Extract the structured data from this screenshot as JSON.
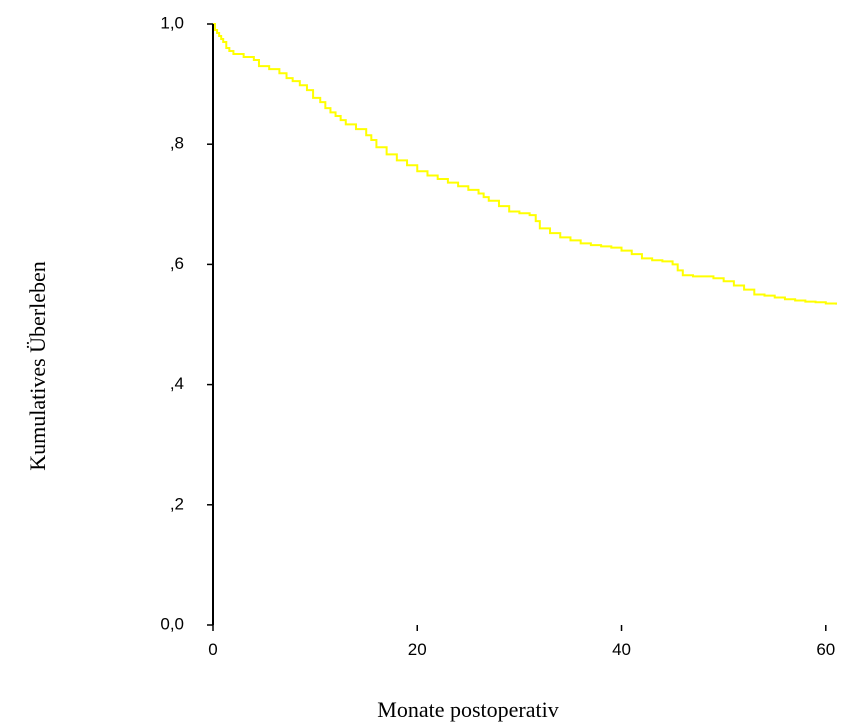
{
  "chart_data": {
    "type": "line",
    "subtype": "kaplan-meier-step",
    "title": "",
    "xlabel": "Monate postoperativ",
    "ylabel": "Kumulatives Überleben",
    "xlim": [
      0,
      61
    ],
    "ylim": [
      0,
      1
    ],
    "x_ticks": [
      {
        "value": 0,
        "label": "0"
      },
      {
        "value": 20,
        "label": "20"
      },
      {
        "value": 40,
        "label": "40"
      },
      {
        "value": 60,
        "label": "60"
      }
    ],
    "y_ticks": [
      {
        "value": 0,
        "label": "0,0"
      },
      {
        "value": 0.2,
        "label": ",2"
      },
      {
        "value": 0.4,
        "label": ",4"
      },
      {
        "value": 0.6,
        "label": ",6"
      },
      {
        "value": 0.8,
        "label": ",8"
      },
      {
        "value": 1.0,
        "label": "1,0"
      }
    ],
    "grid": false,
    "series": [
      {
        "color": "#ffff00",
        "x": [
          0,
          0.2,
          0.4,
          0.6,
          0.8,
          1.0,
          1.3,
          1.6,
          2,
          3,
          4,
          4.5,
          5.5,
          6.5,
          7.2,
          7.8,
          8.5,
          9.2,
          9.8,
          10.5,
          11,
          11.5,
          12,
          12.5,
          13,
          14,
          15,
          15.5,
          16,
          17,
          18,
          19,
          20,
          21,
          22,
          23,
          24,
          25,
          26,
          26.5,
          27,
          28,
          29,
          30,
          31,
          31.6,
          32,
          33,
          34,
          35,
          36,
          37,
          38,
          39,
          40,
          41,
          42,
          43,
          44,
          45,
          45.5,
          46,
          47,
          48,
          49,
          50,
          51,
          52,
          53,
          54,
          55,
          56,
          57,
          58,
          59,
          60,
          61
        ],
        "y": [
          1.0,
          0.99,
          0.985,
          0.98,
          0.975,
          0.97,
          0.96,
          0.955,
          0.95,
          0.945,
          0.94,
          0.93,
          0.925,
          0.918,
          0.91,
          0.905,
          0.898,
          0.89,
          0.877,
          0.87,
          0.86,
          0.853,
          0.847,
          0.84,
          0.833,
          0.825,
          0.815,
          0.807,
          0.795,
          0.783,
          0.773,
          0.765,
          0.755,
          0.748,
          0.742,
          0.736,
          0.73,
          0.724,
          0.718,
          0.712,
          0.706,
          0.697,
          0.688,
          0.685,
          0.682,
          0.672,
          0.66,
          0.652,
          0.645,
          0.64,
          0.635,
          0.632,
          0.63,
          0.628,
          0.623,
          0.617,
          0.61,
          0.607,
          0.605,
          0.6,
          0.59,
          0.582,
          0.58,
          0.58,
          0.577,
          0.572,
          0.565,
          0.558,
          0.55,
          0.548,
          0.545,
          0.542,
          0.54,
          0.538,
          0.537,
          0.535,
          0.533
        ]
      }
    ]
  }
}
